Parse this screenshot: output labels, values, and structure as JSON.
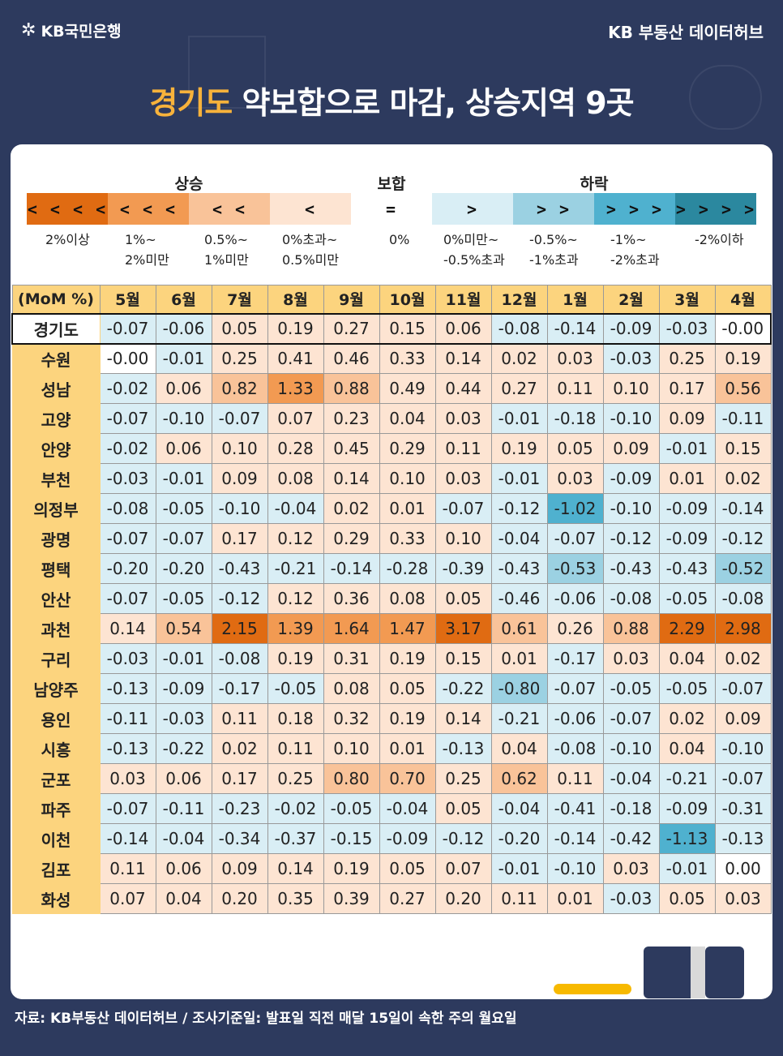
{
  "header": {
    "logo_text": "KB국민은행",
    "brand": "KB 부동산 데이터허브"
  },
  "title": {
    "highlight": "경기도",
    "rest": " 약보합으로 마감, 상승지역 9곳"
  },
  "legend": {
    "groups": [
      {
        "label": "상승"
      },
      {
        "label": "보합"
      },
      {
        "label": "하락"
      }
    ],
    "bins": [
      {
        "symbol": "<<<<",
        "label": "2%이상",
        "color": "#e06b12"
      },
      {
        "symbol": "<<<",
        "label": "1%~\n2%미만",
        "color": "#f29a52"
      },
      {
        "symbol": "<<",
        "label": "0.5%~\n1%미만",
        "color": "#f9c399"
      },
      {
        "symbol": "<",
        "label": "0%초과~\n0.5%미만",
        "color": "#fde4d2"
      },
      {
        "symbol": "=",
        "label": "0%",
        "color": "#ffffff"
      },
      {
        "symbol": ">",
        "label": "0%미만~\n-0.5%초과",
        "color": "#d9eef5"
      },
      {
        "symbol": ">>",
        "label": "-0.5%~\n-1%초과",
        "color": "#9bd1e2"
      },
      {
        "symbol": ">>>",
        "label": "-1%~\n-2%초과",
        "color": "#4fb1cf"
      },
      {
        "symbol": ">>>>",
        "label": "-2%이하",
        "color": "#2b889f"
      }
    ]
  },
  "chart_data": {
    "type": "heatmap",
    "corner_label": "(MoM %)",
    "columns": [
      "5월",
      "6월",
      "7월",
      "8월",
      "9월",
      "10월",
      "11월",
      "12월",
      "1월",
      "2월",
      "3월",
      "4월"
    ],
    "rows": [
      {
        "name": "경기도",
        "values": [
          "-0.07",
          "-0.06",
          "0.05",
          "0.19",
          "0.27",
          "0.15",
          "0.06",
          "-0.08",
          "-0.14",
          "-0.09",
          "-0.03",
          "-0.00"
        ]
      },
      {
        "name": "수원",
        "values": [
          "-0.00",
          "-0.01",
          "0.25",
          "0.41",
          "0.46",
          "0.33",
          "0.14",
          "0.02",
          "0.03",
          "-0.03",
          "0.25",
          "0.19"
        ]
      },
      {
        "name": "성남",
        "values": [
          "-0.02",
          "0.06",
          "0.82",
          "1.33",
          "0.88",
          "0.49",
          "0.44",
          "0.27",
          "0.11",
          "0.10",
          "0.17",
          "0.56"
        ]
      },
      {
        "name": "고양",
        "values": [
          "-0.07",
          "-0.10",
          "-0.07",
          "0.07",
          "0.23",
          "0.04",
          "0.03",
          "-0.01",
          "-0.18",
          "-0.10",
          "0.09",
          "-0.11"
        ]
      },
      {
        "name": "안양",
        "values": [
          "-0.02",
          "0.06",
          "0.10",
          "0.28",
          "0.45",
          "0.29",
          "0.11",
          "0.19",
          "0.05",
          "0.09",
          "-0.01",
          "0.15"
        ]
      },
      {
        "name": "부천",
        "values": [
          "-0.03",
          "-0.01",
          "0.09",
          "0.08",
          "0.14",
          "0.10",
          "0.03",
          "-0.01",
          "0.03",
          "-0.09",
          "0.01",
          "0.02"
        ]
      },
      {
        "name": "의정부",
        "values": [
          "-0.08",
          "-0.05",
          "-0.10",
          "-0.04",
          "0.02",
          "0.01",
          "-0.07",
          "-0.12",
          "-1.02",
          "-0.10",
          "-0.09",
          "-0.14"
        ]
      },
      {
        "name": "광명",
        "values": [
          "-0.07",
          "-0.07",
          "0.17",
          "0.12",
          "0.29",
          "0.33",
          "0.10",
          "-0.04",
          "-0.07",
          "-0.12",
          "-0.09",
          "-0.12"
        ]
      },
      {
        "name": "평택",
        "values": [
          "-0.20",
          "-0.20",
          "-0.43",
          "-0.21",
          "-0.14",
          "-0.28",
          "-0.39",
          "-0.43",
          "-0.53",
          "-0.43",
          "-0.43",
          "-0.52"
        ]
      },
      {
        "name": "안산",
        "values": [
          "-0.07",
          "-0.05",
          "-0.12",
          "0.12",
          "0.36",
          "0.08",
          "0.05",
          "-0.46",
          "-0.06",
          "-0.08",
          "-0.05",
          "-0.08"
        ]
      },
      {
        "name": "과천",
        "values": [
          "0.14",
          "0.54",
          "2.15",
          "1.39",
          "1.64",
          "1.47",
          "3.17",
          "0.61",
          "0.26",
          "0.88",
          "2.29",
          "2.98"
        ]
      },
      {
        "name": "구리",
        "values": [
          "-0.03",
          "-0.01",
          "-0.08",
          "0.19",
          "0.31",
          "0.19",
          "0.15",
          "0.01",
          "-0.17",
          "0.03",
          "0.04",
          "0.02"
        ]
      },
      {
        "name": "남양주",
        "values": [
          "-0.13",
          "-0.09",
          "-0.17",
          "-0.05",
          "0.08",
          "0.05",
          "-0.22",
          "-0.80",
          "-0.07",
          "-0.05",
          "-0.05",
          "-0.07"
        ]
      },
      {
        "name": "용인",
        "values": [
          "-0.11",
          "-0.03",
          "0.11",
          "0.18",
          "0.32",
          "0.19",
          "0.14",
          "-0.21",
          "-0.06",
          "-0.07",
          "0.02",
          "0.09"
        ]
      },
      {
        "name": "시흥",
        "values": [
          "-0.13",
          "-0.22",
          "0.02",
          "0.11",
          "0.10",
          "0.01",
          "-0.13",
          "0.04",
          "-0.08",
          "-0.10",
          "0.04",
          "-0.10"
        ]
      },
      {
        "name": "군포",
        "values": [
          "0.03",
          "0.06",
          "0.17",
          "0.25",
          "0.80",
          "0.70",
          "0.25",
          "0.62",
          "0.11",
          "-0.04",
          "-0.21",
          "-0.07"
        ]
      },
      {
        "name": "파주",
        "values": [
          "-0.07",
          "-0.11",
          "-0.23",
          "-0.02",
          "-0.05",
          "-0.04",
          "0.05",
          "-0.04",
          "-0.41",
          "-0.18",
          "-0.09",
          "-0.31"
        ]
      },
      {
        "name": "이천",
        "values": [
          "-0.14",
          "-0.04",
          "-0.34",
          "-0.37",
          "-0.15",
          "-0.09",
          "-0.12",
          "-0.20",
          "-0.14",
          "-0.42",
          "-1.13",
          "-0.13"
        ]
      },
      {
        "name": "김포",
        "values": [
          "0.11",
          "0.06",
          "0.09",
          "0.14",
          "0.19",
          "0.05",
          "0.07",
          "-0.01",
          "-0.10",
          "0.03",
          "-0.01",
          "0.00"
        ]
      },
      {
        "name": "화성",
        "values": [
          "0.07",
          "0.04",
          "0.20",
          "0.35",
          "0.39",
          "0.27",
          "0.20",
          "0.11",
          "0.01",
          "-0.03",
          "0.05",
          "0.03"
        ]
      }
    ]
  },
  "footer": "자료: KB부동산 데이터허브 / 조사기준일: 발표일 직전 매달 15일이 속한 주의 월요일"
}
